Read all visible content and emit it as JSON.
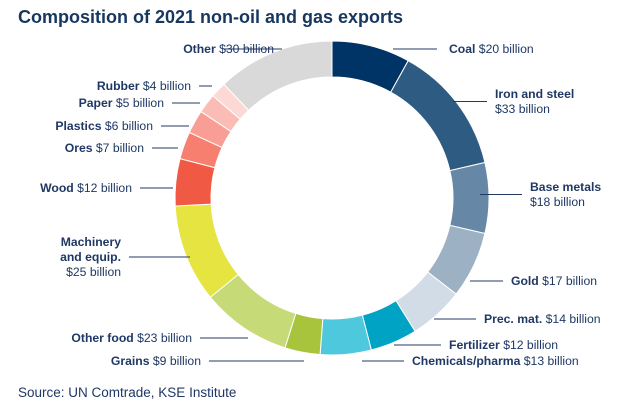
{
  "chart_data": {
    "type": "pie",
    "style": "donut",
    "title": "Composition of 2021 non-oil and gas exports",
    "unit": "billion",
    "currency": "$",
    "source": "Source: UN Comtrade, KSE Institute",
    "slices": [
      {
        "name": "Coal",
        "value": 20,
        "color": "#003366",
        "lines": [
          {
            "b": "Coal",
            "r": " $20 billion"
          }
        ]
      },
      {
        "name": "Iron and steel",
        "value": 33,
        "color": "#2e5b82",
        "lines": [
          {
            "b": "Iron and steel",
            "r": ""
          },
          {
            "b": "",
            "r": "$33 billion"
          }
        ]
      },
      {
        "name": "Base metals",
        "value": 18,
        "color": "#6787a6",
        "lines": [
          {
            "b": "Base metals",
            "r": ""
          },
          {
            "b": "",
            "r": "$18 billion"
          }
        ]
      },
      {
        "name": "Gold",
        "value": 17,
        "color": "#9cb1c4",
        "lines": [
          {
            "b": "Gold",
            "r": " $17 billion"
          }
        ]
      },
      {
        "name": "Prec. mat.",
        "value": 14,
        "color": "#d2dce6",
        "lines": [
          {
            "b": "Prec. mat.",
            "r": " $14 billion"
          }
        ]
      },
      {
        "name": "Fertilizer",
        "value": 12,
        "color": "#00a3c4",
        "lines": [
          {
            "b": "Fertilizer",
            "r": " $12 billion"
          }
        ]
      },
      {
        "name": "Chemicals/pharma",
        "value": 13,
        "color": "#4dc8dc",
        "lines": [
          {
            "b": "Chemicals/pharma",
            "r": " $13 billion"
          }
        ]
      },
      {
        "name": "Grains",
        "value": 9,
        "color": "#a8c43c",
        "lines": [
          {
            "b": "Grains",
            "r": " $9 billion"
          }
        ]
      },
      {
        "name": "Other food",
        "value": 23,
        "color": "#c6da78",
        "lines": [
          {
            "b": "Other food",
            "r": " $23 billion"
          }
        ]
      },
      {
        "name": "Machinery and equip.",
        "value": 25,
        "color": "#e6e440",
        "lines": [
          {
            "b": "Machinery",
            "r": ""
          },
          {
            "b": "and equip.",
            "r": ""
          },
          {
            "b": "",
            "r": "$25 billion"
          }
        ]
      },
      {
        "name": "Wood",
        "value": 12,
        "color": "#f05a44",
        "lines": [
          {
            "b": "Wood",
            "r": " $12 billion"
          }
        ]
      },
      {
        "name": "Ores",
        "value": 7,
        "color": "#f67f70",
        "lines": [
          {
            "b": "Ores",
            "r": " $7 billion"
          }
        ]
      },
      {
        "name": "Plastics",
        "value": 6,
        "color": "#f89e94",
        "lines": [
          {
            "b": "Plastics",
            "r": " $6 billion"
          }
        ]
      },
      {
        "name": "Paper",
        "value": 5,
        "color": "#fbbcb5",
        "lines": [
          {
            "b": "Paper",
            "r": " $5 billion"
          }
        ]
      },
      {
        "name": "Rubber",
        "value": 4,
        "color": "#fdd9d5",
        "lines": [
          {
            "b": "Rubber",
            "r": " $4 billion"
          }
        ]
      },
      {
        "name": "Other",
        "value": 30,
        "color": "#d9d9d9",
        "lines": [
          {
            "b": "Other",
            "r": " $30 billion"
          }
        ]
      }
    ]
  }
}
